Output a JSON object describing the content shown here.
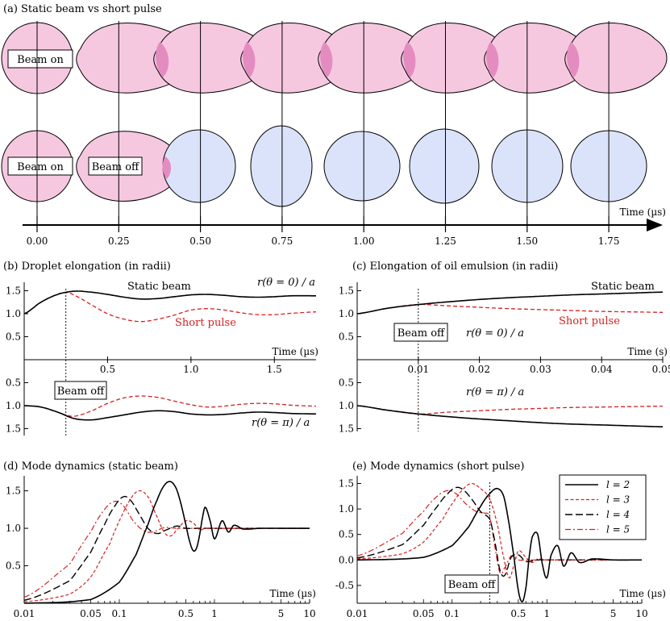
{
  "colors": {
    "pink": "#f6c8e0",
    "blue": "#dbe3fb",
    "red": "#d62020",
    "black": "#000000",
    "overlap": "#e48cc0"
  },
  "chart_data": [
    {
      "panel": "a",
      "type": "diagram",
      "title": "(a) Static beam vs short pulse",
      "xlabel": "Time (µs)",
      "ticks": [
        "0.00",
        "0.25",
        "0.50",
        "0.75",
        "1.00",
        "1.25",
        "1.50",
        "1.75"
      ],
      "times": [
        0.0,
        0.25,
        0.5,
        0.75,
        1.0,
        1.25,
        1.5,
        1.75
      ],
      "labels": {
        "beam_on": "Beam on",
        "beam_off": "Beam off"
      },
      "rows": [
        {
          "name": "static beam",
          "beam_on_at": 0.0,
          "states": [
            "on",
            "on",
            "on",
            "on",
            "on",
            "on",
            "on",
            "on"
          ]
        },
        {
          "name": "short pulse",
          "beam_on_at": 0.0,
          "beam_off_at": 0.25,
          "states": [
            "on",
            "on",
            "off",
            "off",
            "off",
            "off",
            "off",
            "off"
          ]
        }
      ]
    },
    {
      "panel": "b",
      "type": "line",
      "title": "(b) Droplet elongation (in radii)",
      "xlabel": "Time (µs)",
      "xlim": [
        0,
        1.75
      ],
      "xticks": [
        "0.5",
        "1.0",
        "1.5"
      ],
      "upper": {
        "ylabel": "r(θ = 0) / a",
        "yticks": [
          "0.5",
          "1.0",
          "1.5"
        ],
        "series": [
          {
            "name": "Static beam",
            "style": "solid",
            "x": [
              0,
              0.1,
              0.2,
              0.3,
              0.4,
              0.5,
              0.6,
              0.7,
              0.8,
              0.9,
              1.0,
              1.1,
              1.2,
              1.3,
              1.4,
              1.5,
              1.6,
              1.75
            ],
            "y": [
              1.0,
              1.25,
              1.42,
              1.49,
              1.47,
              1.42,
              1.36,
              1.32,
              1.33,
              1.37,
              1.41,
              1.42,
              1.4,
              1.37,
              1.36,
              1.37,
              1.39,
              1.39
            ]
          },
          {
            "name": "Short pulse",
            "style": "dashed",
            "x": [
              0,
              0.1,
              0.2,
              0.25,
              0.3,
              0.4,
              0.5,
              0.6,
              0.7,
              0.8,
              0.9,
              1.0,
              1.1,
              1.2,
              1.3,
              1.4,
              1.5,
              1.6,
              1.75
            ],
            "y": [
              1.0,
              1.25,
              1.42,
              1.46,
              1.4,
              1.2,
              1.0,
              0.88,
              0.83,
              0.88,
              0.97,
              1.08,
              1.11,
              1.08,
              1.02,
              0.98,
              0.98,
              1.01,
              1.04
            ]
          }
        ]
      },
      "lower": {
        "ylabel": "r(θ = π) / a",
        "yticks": [
          "0.5",
          "1.0",
          "1.5"
        ],
        "series": [
          {
            "name": "Static beam",
            "style": "solid",
            "x": [
              0,
              0.1,
              0.2,
              0.3,
              0.4,
              0.5,
              0.6,
              0.7,
              0.8,
              0.9,
              1.0,
              1.1,
              1.2,
              1.3,
              1.4,
              1.5,
              1.6,
              1.75
            ],
            "y": [
              1.0,
              1.03,
              1.14,
              1.28,
              1.31,
              1.26,
              1.2,
              1.14,
              1.11,
              1.13,
              1.18,
              1.2,
              1.19,
              1.16,
              1.14,
              1.15,
              1.17,
              1.18
            ]
          },
          {
            "name": "Short pulse",
            "style": "dashed",
            "x": [
              0,
              0.1,
              0.2,
              0.25,
              0.3,
              0.4,
              0.5,
              0.6,
              0.7,
              0.8,
              0.9,
              1.0,
              1.1,
              1.2,
              1.3,
              1.4,
              1.5,
              1.6,
              1.75
            ],
            "y": [
              1.0,
              1.03,
              1.14,
              1.2,
              1.23,
              1.12,
              0.95,
              0.83,
              0.79,
              0.82,
              0.9,
              0.98,
              1.03,
              1.01,
              0.97,
              0.95,
              0.96,
              0.99,
              1.01
            ]
          }
        ]
      },
      "annotations": {
        "beam_off": "Beam off",
        "beam_off_at": 0.25,
        "static": "Static beam",
        "pulse": "Short pulse"
      }
    },
    {
      "panel": "c",
      "type": "line",
      "title": "(c) Elongation of oil emulsion (in radii)",
      "xlabel": "Time (s)",
      "xlim": [
        0,
        0.05
      ],
      "xticks": [
        "0.01",
        "0.02",
        "0.03",
        "0.04",
        "0.05"
      ],
      "upper": {
        "ylabel": "r(θ = 0) / a",
        "yticks": [
          "0.5",
          "1.0",
          "1.5"
        ],
        "series": [
          {
            "name": "Static beam",
            "style": "solid",
            "x": [
              0,
              0.005,
              0.01,
              0.015,
              0.02,
              0.025,
              0.03,
              0.035,
              0.04,
              0.045,
              0.05
            ],
            "y": [
              1.0,
              1.12,
              1.2,
              1.26,
              1.31,
              1.35,
              1.38,
              1.41,
              1.43,
              1.45,
              1.47
            ]
          },
          {
            "name": "Short pulse",
            "style": "dashed",
            "x": [
              0,
              0.005,
              0.01,
              0.015,
              0.02,
              0.025,
              0.03,
              0.035,
              0.04,
              0.045,
              0.05
            ],
            "y": [
              1.0,
              1.12,
              1.2,
              1.17,
              1.14,
              1.11,
              1.09,
              1.07,
              1.05,
              1.04,
              1.03
            ]
          }
        ]
      },
      "lower": {
        "ylabel": "r(θ = π) / a",
        "yticks": [
          "0.5",
          "1.0",
          "1.5"
        ],
        "series": [
          {
            "name": "Static beam",
            "style": "solid",
            "x": [
              0,
              0.005,
              0.01,
              0.015,
              0.02,
              0.025,
              0.03,
              0.035,
              0.04,
              0.045,
              0.05
            ],
            "y": [
              1.0,
              1.1,
              1.18,
              1.24,
              1.29,
              1.33,
              1.37,
              1.4,
              1.42,
              1.44,
              1.46
            ]
          },
          {
            "name": "Short pulse",
            "style": "dashed",
            "x": [
              0,
              0.005,
              0.01,
              0.015,
              0.02,
              0.025,
              0.03,
              0.035,
              0.04,
              0.045,
              0.05
            ],
            "y": [
              1.0,
              1.1,
              1.18,
              1.14,
              1.11,
              1.08,
              1.06,
              1.04,
              1.03,
              1.02,
              1.01
            ]
          }
        ]
      },
      "annotations": {
        "beam_off": "Beam off",
        "beam_off_at": 0.01,
        "static": "Static beam",
        "pulse": "Short pulse"
      }
    },
    {
      "panel": "d",
      "type": "line",
      "scale": "log-x",
      "title": "(d) Mode dynamics (static beam)",
      "xlabel": "Time (µs)",
      "xlim": [
        0.01,
        10
      ],
      "ylim": [
        0.0,
        1.7
      ],
      "xticks": [
        "0.01",
        "0.05",
        "0.1",
        "0.5",
        "1",
        "5",
        "10"
      ],
      "yticks": [
        "0.5",
        "1.0",
        "1.5"
      ],
      "series": [
        {
          "name": "l = 2",
          "style": "solid",
          "x": [
            0.01,
            0.05,
            0.1,
            0.15,
            0.2,
            0.25,
            0.3,
            0.35,
            0.4,
            0.45,
            0.5,
            0.55,
            0.6,
            0.65,
            0.7,
            0.75,
            0.8,
            0.9,
            1.0,
            1.2,
            1.4,
            1.6,
            2,
            3,
            5,
            10
          ],
          "y": [
            0.0,
            0.05,
            0.28,
            0.65,
            1.05,
            1.38,
            1.58,
            1.62,
            1.52,
            1.3,
            1.05,
            0.82,
            0.7,
            0.74,
            0.92,
            1.15,
            1.28,
            1.1,
            0.86,
            1.1,
            0.95,
            1.04,
            0.99,
            1.0,
            1.0,
            1.0
          ]
        },
        {
          "name": "l = 3",
          "style": "dashed-red",
          "x": [
            0.01,
            0.03,
            0.05,
            0.08,
            0.1,
            0.13,
            0.16,
            0.2,
            0.25,
            0.3,
            0.35,
            0.4,
            0.5,
            0.6,
            0.7,
            0.8,
            1,
            2,
            10
          ],
          "y": [
            0.02,
            0.12,
            0.35,
            0.8,
            1.1,
            1.38,
            1.5,
            1.42,
            1.15,
            0.94,
            0.9,
            0.98,
            1.1,
            1.07,
            0.98,
            1.0,
            1.0,
            1.0,
            1.0
          ]
        },
        {
          "name": "l = 4",
          "style": "longdash",
          "x": [
            0.01,
            0.03,
            0.05,
            0.07,
            0.09,
            0.11,
            0.13,
            0.16,
            0.2,
            0.25,
            0.3,
            0.4,
            0.5,
            0.7,
            1,
            10
          ],
          "y": [
            0.04,
            0.3,
            0.68,
            1.05,
            1.3,
            1.42,
            1.38,
            1.2,
            1.0,
            0.93,
            0.97,
            1.03,
            1.0,
            1.0,
            1.0,
            1.0
          ]
        },
        {
          "name": "l = 5",
          "style": "dashdot-red",
          "x": [
            0.01,
            0.03,
            0.05,
            0.07,
            0.09,
            0.11,
            0.14,
            0.18,
            0.22,
            0.3,
            0.4,
            0.6,
            1,
            10
          ],
          "y": [
            0.08,
            0.52,
            0.95,
            1.25,
            1.36,
            1.3,
            1.1,
            0.97,
            0.95,
            1.01,
            1.0,
            1.0,
            1.0,
            1.0
          ]
        }
      ]
    },
    {
      "panel": "e",
      "type": "line",
      "scale": "log-x",
      "title": "(e) Mode dynamics (short pulse)",
      "xlabel": "Time (µs)",
      "xlim": [
        0.01,
        10
      ],
      "ylim": [
        -0.85,
        1.65
      ],
      "xticks": [
        "0.01",
        "0.05",
        "0.1",
        "0.5",
        "1",
        "5",
        "10"
      ],
      "yticks": [
        "-0.5",
        "0.0",
        "0.5",
        "1.0",
        "1.5"
      ],
      "beam_off_at": 0.25,
      "beam_off_label": "Beam off",
      "legend": {
        "position": "top-right",
        "entries": [
          "l = 2",
          "l = 3",
          "l = 4",
          "l = 5"
        ]
      },
      "series": [
        {
          "name": "l = 2",
          "style": "solid",
          "x": [
            0.01,
            0.05,
            0.1,
            0.15,
            0.2,
            0.25,
            0.3,
            0.35,
            0.4,
            0.45,
            0.5,
            0.55,
            0.6,
            0.65,
            0.7,
            0.8,
            0.9,
            1.0,
            1.1,
            1.3,
            1.5,
            1.8,
            2.2,
            3,
            5,
            10
          ],
          "y": [
            0.0,
            0.05,
            0.28,
            0.65,
            1.05,
            1.3,
            1.4,
            1.25,
            0.7,
            0.05,
            -0.6,
            -0.82,
            -0.55,
            0.05,
            0.45,
            0.5,
            -0.1,
            -0.35,
            0.08,
            0.28,
            -0.12,
            0.14,
            -0.05,
            0.02,
            0.0,
            0.0
          ]
        },
        {
          "name": "l = 3",
          "style": "dashed-red",
          "x": [
            0.01,
            0.03,
            0.05,
            0.08,
            0.1,
            0.13,
            0.16,
            0.2,
            0.25,
            0.3,
            0.35,
            0.4,
            0.45,
            0.5,
            0.6,
            0.7,
            0.8,
            1.0,
            2,
            10
          ],
          "y": [
            0.02,
            0.12,
            0.35,
            0.8,
            1.1,
            1.38,
            1.5,
            1.4,
            1.2,
            0.7,
            0.05,
            -0.35,
            -0.1,
            0.18,
            0.05,
            -0.05,
            0.02,
            0.0,
            0.0,
            0.0
          ]
        },
        {
          "name": "l = 4",
          "style": "longdash",
          "x": [
            0.01,
            0.03,
            0.05,
            0.07,
            0.09,
            0.11,
            0.13,
            0.16,
            0.2,
            0.25,
            0.28,
            0.32,
            0.36,
            0.42,
            0.5,
            0.6,
            0.8,
            1,
            10
          ],
          "y": [
            0.04,
            0.3,
            0.68,
            1.05,
            1.3,
            1.42,
            1.38,
            1.2,
            0.95,
            0.8,
            0.4,
            -0.2,
            -0.3,
            0.05,
            0.1,
            -0.03,
            0.0,
            0.0,
            0.0
          ]
        },
        {
          "name": "l = 5",
          "style": "dashdot-red",
          "x": [
            0.01,
            0.03,
            0.05,
            0.07,
            0.09,
            0.11,
            0.14,
            0.18,
            0.22,
            0.25,
            0.28,
            0.32,
            0.36,
            0.42,
            0.5,
            0.7,
            1,
            10
          ],
          "y": [
            0.08,
            0.52,
            0.95,
            1.25,
            1.36,
            1.3,
            1.1,
            0.95,
            0.92,
            0.85,
            0.3,
            -0.25,
            -0.15,
            0.08,
            0.0,
            0.0,
            0.0,
            0.0
          ]
        }
      ]
    }
  ]
}
